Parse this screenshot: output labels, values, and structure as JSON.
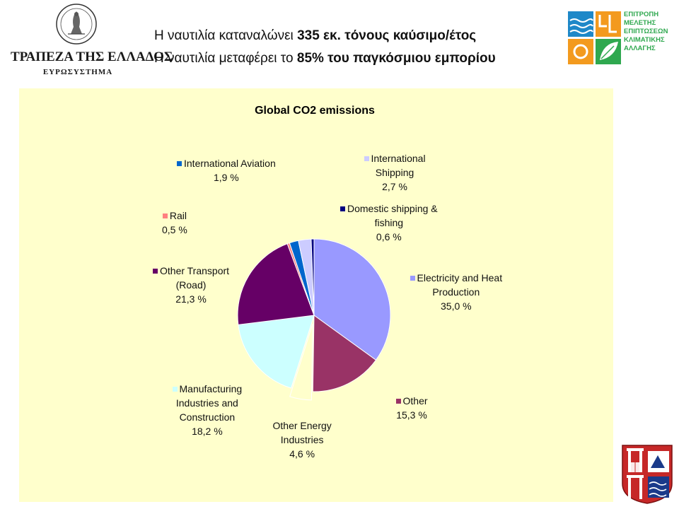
{
  "header": {
    "bank_name": "ΤΡΑΠΕΖΑ ΤΗΣ ΕΛΛΑΔΟΣ",
    "bank_subtitle": "ΕΥΡΩΣΥΣΤΗΜΑ",
    "headline_1_pre": "Η ναυτιλία καταναλώνει ",
    "headline_1_bold": "335 εκ. τόνους καύσιμο/έτος",
    "headline_2_pre": "Η ναυτιλία μεταφέρει το ",
    "headline_2_bold": "85% του παγκόσμιου εμπορίου",
    "committee_lines": [
      "ΕΠΙΤΡΟΠΗ",
      "ΜΕΛΕΤΗΣ",
      "ΕΠΙΠΤΩΣΕΩΝ",
      "ΚΛΙΜΑΤΙΚΗΣ",
      "ΑΛΛΑΓΗΣ"
    ]
  },
  "colors": {
    "chart_background": "#ffffcc",
    "committee_green": "#2fa84f",
    "committee_blue": "#1e88c8",
    "committee_orange": "#f39a1e",
    "university_red": "#c62828"
  },
  "chart_data": {
    "type": "pie",
    "title": "Global CO2 emissions",
    "unit": "%",
    "slices": [
      {
        "name": "Electricity and Heat Production",
        "label_lines": [
          "Electricity and Heat",
          "Production"
        ],
        "value": 35.0,
        "value_text": "35,0 %",
        "color": "#9999ff",
        "leader": false
      },
      {
        "name": "Other",
        "label_lines": [
          "Other"
        ],
        "value": 15.3,
        "value_text": "15,3 %",
        "color": "#993366",
        "leader": false
      },
      {
        "name": "Other Energy Industries",
        "label_lines": [
          "Other Energy",
          "Industries"
        ],
        "value": 4.6,
        "value_text": "4,6 %",
        "color": "#ffffcc",
        "leader": false,
        "no_swatch": true
      },
      {
        "name": "Manufacturing Industries and Construction",
        "label_lines": [
          "Manufacturing",
          "Industries and",
          "Construction"
        ],
        "value": 18.2,
        "value_text": "18,2 %",
        "color": "#ccffff",
        "leader": false
      },
      {
        "name": "Other Transport (Road)",
        "label_lines": [
          "Other Transport",
          "(Road)"
        ],
        "value": 21.3,
        "value_text": "21,3 %",
        "color": "#660066",
        "leader": false
      },
      {
        "name": "Rail",
        "label_lines": [
          "Rail"
        ],
        "value": 0.5,
        "value_text": "0,5 %",
        "color": "#ff8080",
        "leader": false
      },
      {
        "name": "International Aviation",
        "label_lines": [
          "International Aviation"
        ],
        "value": 1.9,
        "value_text": "1,9 %",
        "color": "#0066cc",
        "leader": false
      },
      {
        "name": "International Shipping",
        "label_lines": [
          "International",
          "Shipping"
        ],
        "value": 2.7,
        "value_text": "2,7 %",
        "color": "#ccccff",
        "leader": false
      },
      {
        "name": "Domestic shipping & fishing",
        "label_lines": [
          "Domestic shipping &",
          "fishing"
        ],
        "value": 0.6,
        "value_text": "0,6 %",
        "color": "#000080",
        "leader": false
      }
    ],
    "start_angle_deg": 0,
    "direction": "clockwise",
    "legend": "none (data labels beside slices)"
  }
}
